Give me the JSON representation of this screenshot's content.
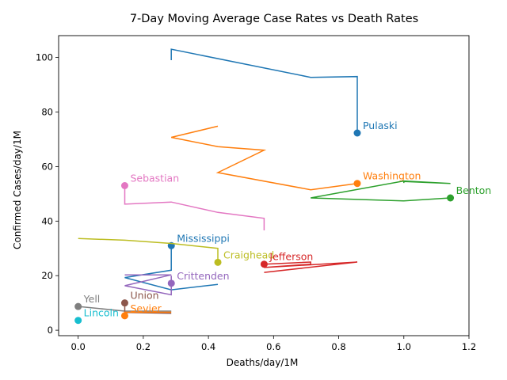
{
  "chart_data": {
    "type": "line",
    "title": "7-Day Moving Average Case Rates vs Death Rates",
    "xlabel": "Deaths/day/1M",
    "ylabel": "Confirmed Cases/day/1M",
    "xlim": [
      -0.06,
      1.2
    ],
    "ylim": [
      -2,
      108
    ],
    "x_ticks": [
      0.0,
      0.2,
      0.4,
      0.6,
      0.8,
      1.0,
      1.2
    ],
    "x_tick_labels": [
      "0.0",
      "0.2",
      "0.4",
      "0.6",
      "0.8",
      "1.0",
      "1.2"
    ],
    "y_ticks": [
      0,
      20,
      40,
      60,
      80,
      100
    ],
    "y_tick_labels": [
      "0",
      "20",
      "40",
      "60",
      "80",
      "100"
    ],
    "grid": false,
    "series": [
      {
        "name": "Pulaski",
        "color": "#1f77b4",
        "x": [
          0.286,
          0.286,
          0.714,
          0.857,
          0.857
        ],
        "y": [
          99.0,
          103.0,
          92.7,
          93.0,
          72.3
        ]
      },
      {
        "name": "Washington",
        "color": "#ff7f0e",
        "x": [
          0.429,
          0.286,
          0.429,
          0.571,
          0.429,
          0.714,
          0.857
        ],
        "y": [
          74.8,
          70.7,
          67.3,
          66.0,
          57.8,
          51.5,
          53.8
        ]
      },
      {
        "name": "Benton",
        "color": "#2ca02c",
        "x": [
          1.0,
          1.0,
          1.143,
          1.0,
          0.714,
          1.0,
          1.143
        ],
        "y": [
          54.0,
          54.5,
          53.8,
          54.7,
          48.5,
          47.4,
          48.5
        ]
      },
      {
        "name": "Sebastian",
        "color": "#e377c2",
        "x": [
          0.571,
          0.571,
          0.429,
          0.286,
          0.143,
          0.143
        ],
        "y": [
          36.6,
          41.0,
          43.2,
          47.0,
          46.2,
          53.0
        ]
      },
      {
        "name": "Mississippi",
        "color": "#1f77b4",
        "x": [
          0.429,
          0.286,
          0.143,
          0.286,
          0.286
        ],
        "y": [
          16.8,
          14.8,
          19.3,
          22.0,
          31.0
        ]
      },
      {
        "name": "Craighead",
        "color": "#bcbd22",
        "x": [
          0.0,
          0.143,
          0.286,
          0.429,
          0.429
        ],
        "y": [
          33.6,
          33.0,
          31.8,
          30.0,
          24.9
        ]
      },
      {
        "name": "Jefferson",
        "color": "#d62728",
        "x": [
          0.571,
          0.857,
          0.571,
          0.714,
          0.714,
          0.571
        ],
        "y": [
          21.2,
          25.0,
          23.0,
          24.2,
          25.0,
          24.2
        ]
      },
      {
        "name": "Crittenden",
        "color": "#9467bd",
        "x": [
          0.143,
          0.286,
          0.143,
          0.286,
          0.286,
          0.286
        ],
        "y": [
          20.3,
          20.3,
          16.3,
          13.0,
          20.0,
          17.2
        ]
      },
      {
        "name": "Yell",
        "color": "#7f7f7f",
        "x": [
          0.286,
          0.143,
          0.0
        ],
        "y": [
          7.0,
          7.0,
          8.7
        ]
      },
      {
        "name": "Union",
        "color": "#8c564b",
        "x": [
          0.286,
          0.143,
          0.143
        ],
        "y": [
          6.2,
          6.5,
          10.0
        ]
      },
      {
        "name": "Sevier",
        "color": "#ff7f0e",
        "x": [
          0.286,
          0.143,
          0.143
        ],
        "y": [
          6.6,
          6.6,
          5.3
        ]
      },
      {
        "name": "Lincoln",
        "color": "#17becf",
        "x": [
          0.0
        ],
        "y": [
          3.6
        ]
      }
    ]
  }
}
